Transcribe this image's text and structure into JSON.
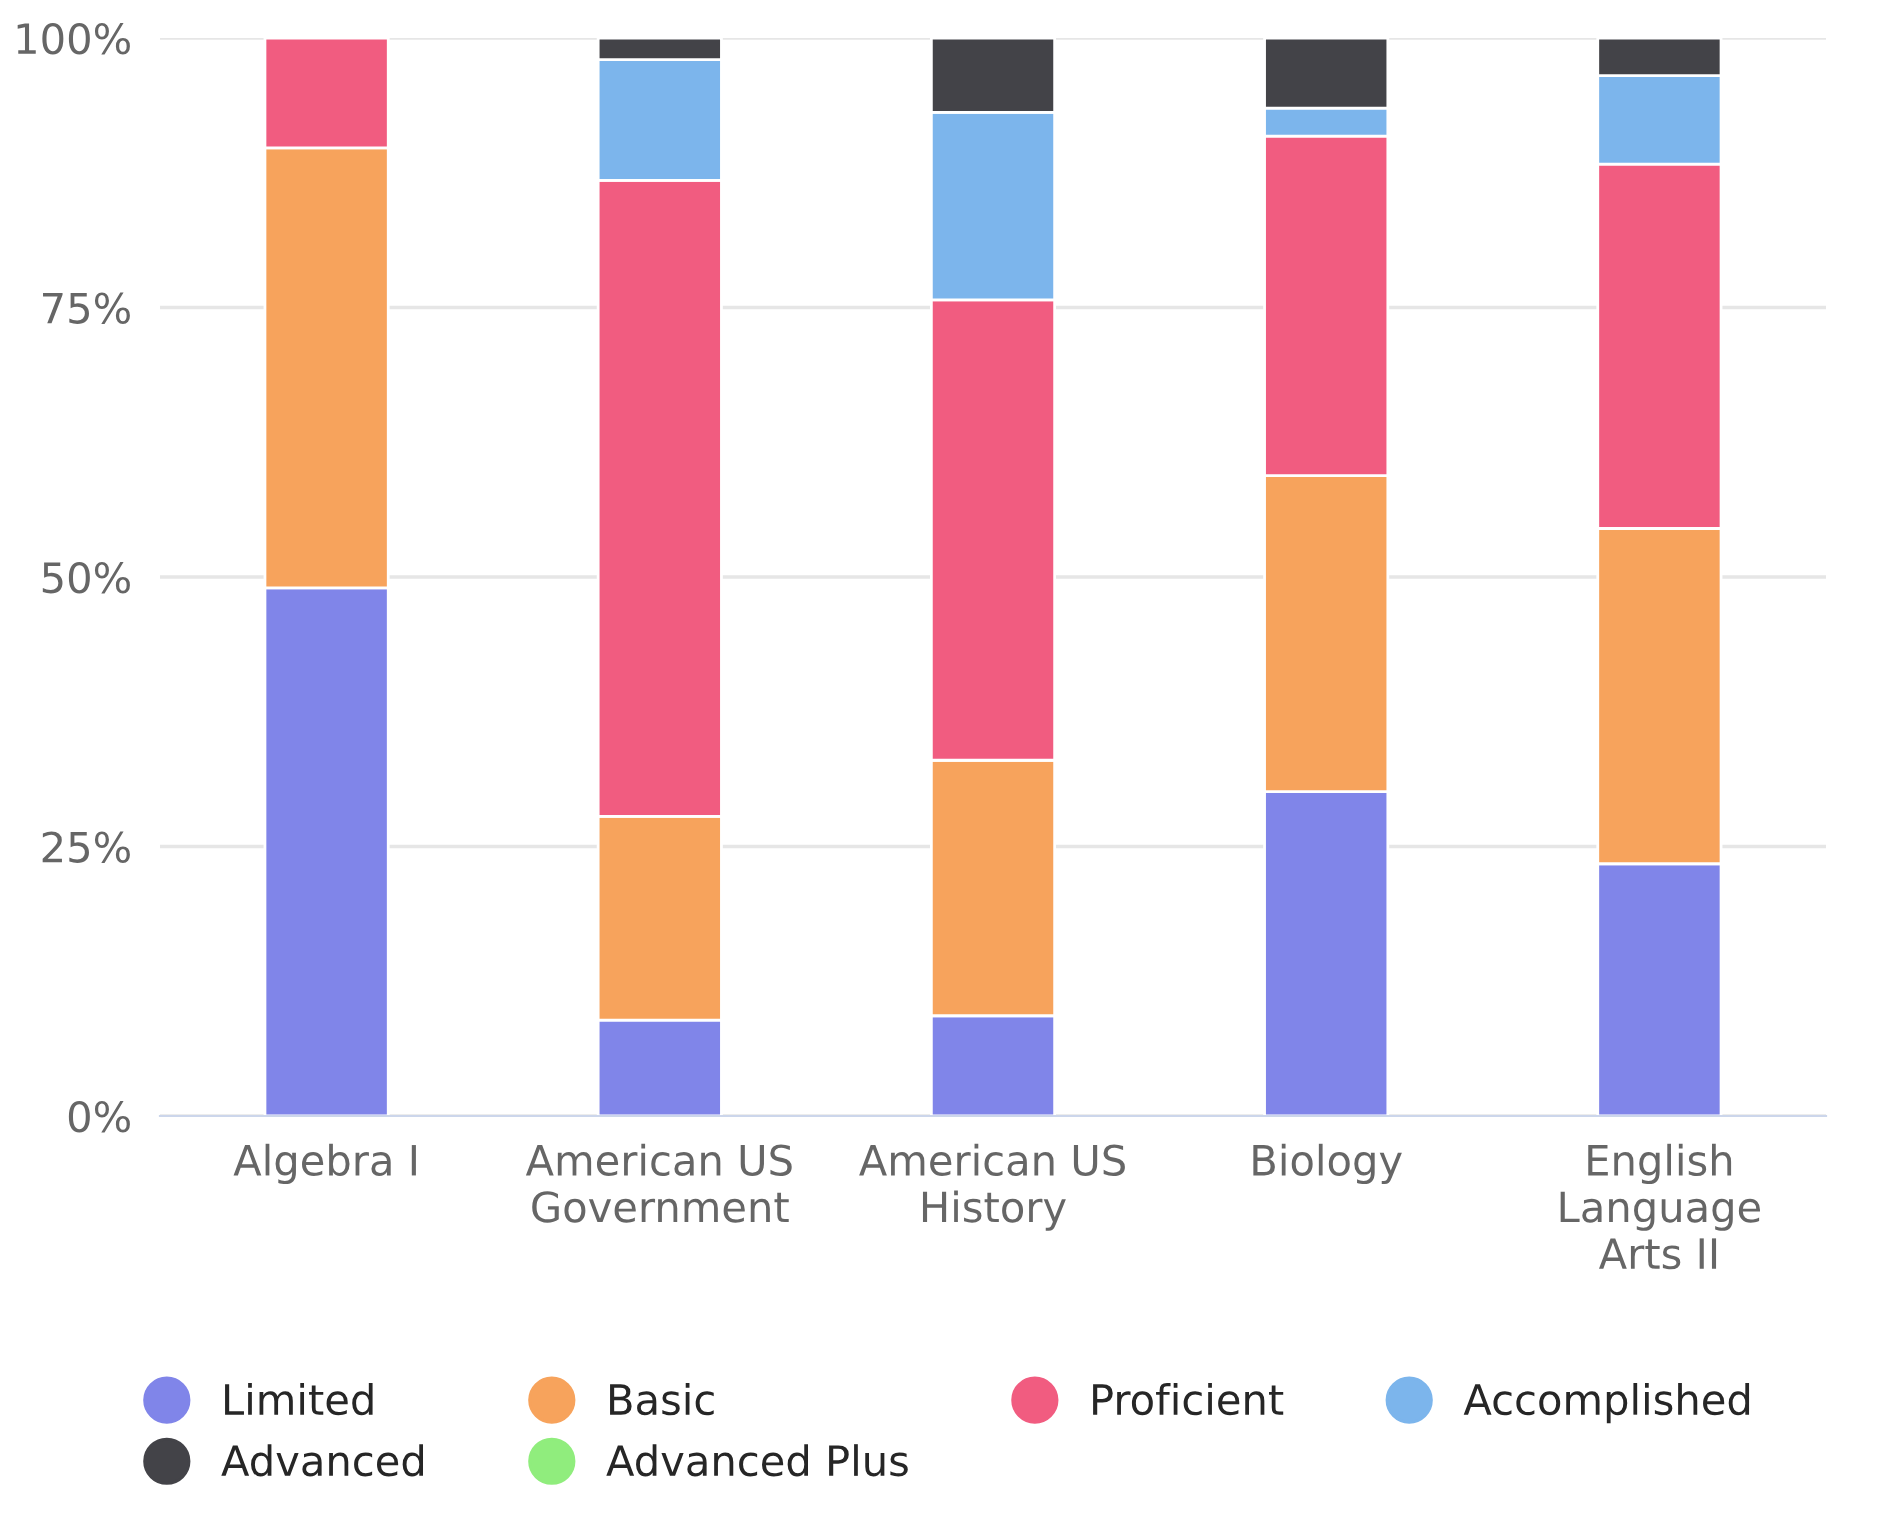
{
  "chart_data": {
    "type": "bar",
    "stacked": true,
    "categories": [
      "Algebra I",
      "American US\nGovernment",
      "American US\nHistory",
      "Biology",
      "English\nLanguage\nArts II"
    ],
    "series": [
      {
        "name": "Limited",
        "color": "#8085e9",
        "values": [
          49.0,
          8.9,
          9.3,
          30.1,
          23.4
        ]
      },
      {
        "name": "Basic",
        "color": "#f7a35c",
        "values": [
          40.8,
          18.9,
          23.7,
          29.3,
          31.1
        ]
      },
      {
        "name": "Proficient",
        "color": "#f15c80",
        "values": [
          10.2,
          59.0,
          42.7,
          31.5,
          33.8
        ]
      },
      {
        "name": "Accomplished",
        "color": "#7cb5ec",
        "values": [
          null,
          11.2,
          17.4,
          2.6,
          8.2
        ]
      },
      {
        "name": "Advanced",
        "color": "#434348",
        "values": [
          null,
          2.0,
          6.9,
          6.5,
          3.5
        ]
      },
      {
        "name": "Advanced Plus",
        "color": "#90ed7d",
        "values": [
          null,
          null,
          null,
          null,
          null
        ]
      }
    ],
    "ylim": [
      0,
      100
    ],
    "yticks": [
      {
        "value": 0,
        "label": "0%"
      },
      {
        "value": 25,
        "label": "25%"
      },
      {
        "value": 50,
        "label": "50%"
      },
      {
        "value": 75,
        "label": "75%"
      },
      {
        "value": 100,
        "label": "100%"
      }
    ],
    "grid": "y",
    "legend": "bottom"
  }
}
